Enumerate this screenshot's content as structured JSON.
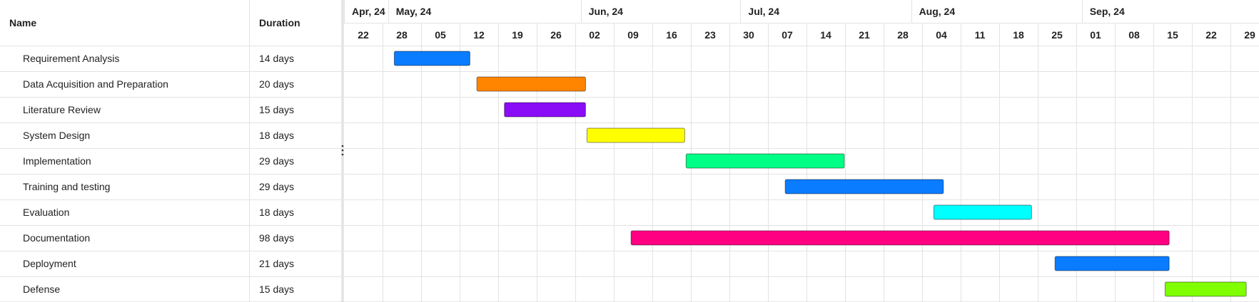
{
  "chart_data": {
    "type": "gantt",
    "columns": {
      "name": "Name",
      "duration": "Duration"
    },
    "month_labels": [
      {
        "label": "Apr, 24",
        "start": "2024-04-22"
      },
      {
        "label": "May, 24",
        "start": "2024-04-27"
      },
      {
        "label": "Jun, 24",
        "start": "2024-06-01"
      },
      {
        "label": "Jul, 24",
        "start": "2024-06-30"
      },
      {
        "label": "Aug, 24",
        "start": "2024-07-31"
      },
      {
        "label": "Sep, 24",
        "start": "2024-08-31"
      }
    ],
    "weeks": [
      {
        "label": "22",
        "date": "2024-04-22"
      },
      {
        "label": "28",
        "date": "2024-04-28"
      },
      {
        "label": "05",
        "date": "2024-05-05"
      },
      {
        "label": "12",
        "date": "2024-05-12"
      },
      {
        "label": "19",
        "date": "2024-05-19"
      },
      {
        "label": "26",
        "date": "2024-05-26"
      },
      {
        "label": "02",
        "date": "2024-06-02"
      },
      {
        "label": "09",
        "date": "2024-06-09"
      },
      {
        "label": "16",
        "date": "2024-06-16"
      },
      {
        "label": "23",
        "date": "2024-06-23"
      },
      {
        "label": "30",
        "date": "2024-06-30"
      },
      {
        "label": "07",
        "date": "2024-07-07"
      },
      {
        "label": "14",
        "date": "2024-07-14"
      },
      {
        "label": "21",
        "date": "2024-07-21"
      },
      {
        "label": "28",
        "date": "2024-07-28"
      },
      {
        "label": "04",
        "date": "2024-08-04"
      },
      {
        "label": "11",
        "date": "2024-08-11"
      },
      {
        "label": "18",
        "date": "2024-08-18"
      },
      {
        "label": "25",
        "date": "2024-08-25"
      },
      {
        "label": "01",
        "date": "2024-09-01"
      },
      {
        "label": "08",
        "date": "2024-09-08"
      },
      {
        "label": "15",
        "date": "2024-09-15"
      },
      {
        "label": "22",
        "date": "2024-09-22"
      },
      {
        "label": "29",
        "date": "2024-09-29"
      }
    ],
    "tasks": [
      {
        "name": "Requirement Analysis",
        "duration": "14 days",
        "start": "2024-04-28",
        "end": "2024-05-11",
        "color": "#0a7cff"
      },
      {
        "name": "Data Acquisition and Preparation",
        "duration": "20 days",
        "start": "2024-05-13",
        "end": "2024-06-01",
        "color": "#ff8400"
      },
      {
        "name": "Literature Review",
        "duration": "15 days",
        "start": "2024-05-18",
        "end": "2024-06-01",
        "color": "#8a0cf7"
      },
      {
        "name": "System Design",
        "duration": "18 days",
        "start": "2024-06-02",
        "end": "2024-06-19",
        "color": "#ffff00"
      },
      {
        "name": "Implementation",
        "duration": "29 days",
        "start": "2024-06-20",
        "end": "2024-07-18",
        "color": "#00ff85"
      },
      {
        "name": "Training and testing",
        "duration": "29 days",
        "start": "2024-07-08",
        "end": "2024-08-05",
        "color": "#0a7cff"
      },
      {
        "name": "Evaluation",
        "duration": "18 days",
        "start": "2024-08-04",
        "end": "2024-08-21",
        "color": "#00ffff"
      },
      {
        "name": "Documentation",
        "duration": "98 days",
        "start": "2024-06-10",
        "end": "2024-09-15",
        "color": "#ff0083"
      },
      {
        "name": "Deployment",
        "duration": "21 days",
        "start": "2024-08-26",
        "end": "2024-09-15",
        "color": "#0a7cff"
      },
      {
        "name": "Defense",
        "duration": "15 days",
        "start": "2024-09-15",
        "end": "2024-09-29",
        "color": "#7fff00"
      }
    ]
  }
}
